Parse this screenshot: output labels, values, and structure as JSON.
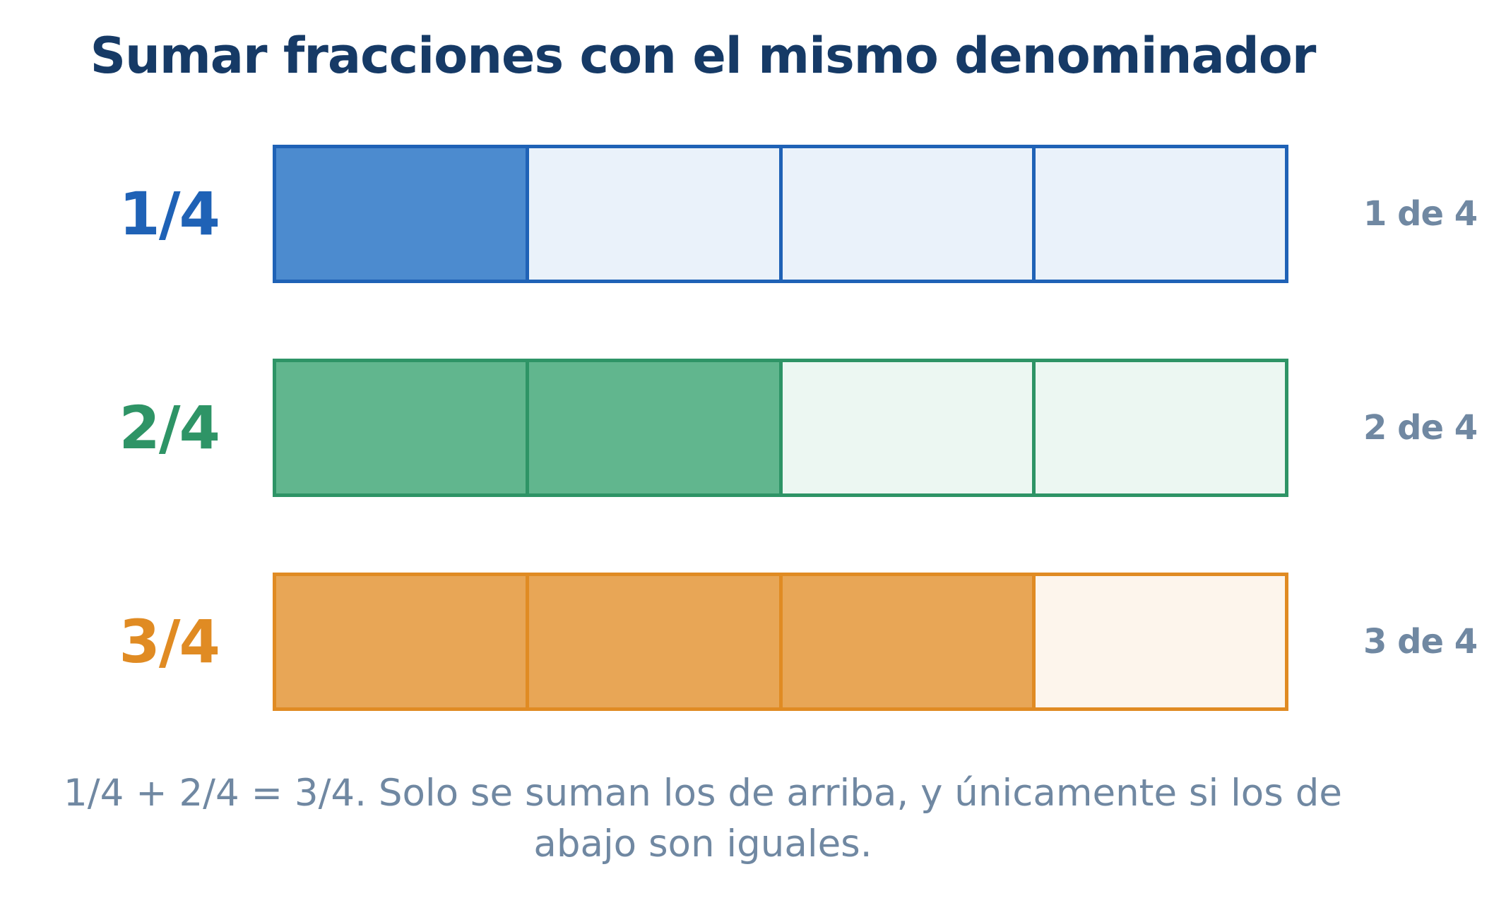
{
  "title": "Sumar fracciones con el mismo denominador",
  "rows": [
    {
      "fraction": "1/4",
      "count_label": "1 de 4",
      "filled": 1,
      "total": 4,
      "colors": {
        "text": "#1f62b6",
        "border": "#1f62b6",
        "filled": "#4c8bcf",
        "empty": "#eaf2fa"
      }
    },
    {
      "fraction": "2/4",
      "count_label": "2 de 4",
      "filled": 2,
      "total": 4,
      "colors": {
        "text": "#2e9466",
        "border": "#2e9466",
        "filled": "#61b68e",
        "empty": "#ecf7f2"
      }
    },
    {
      "fraction": "3/4",
      "count_label": "3 de 4",
      "filled": 3,
      "total": 4,
      "colors": {
        "text": "#e08b23",
        "border": "#e08b23",
        "filled": "#e8a656",
        "empty": "#fdf5ec"
      }
    }
  ],
  "caption_line1": "1/4 + 2/4 = 3/4. Solo se suman los de arriba, y únicamente si los de",
  "caption_line2": "abajo son iguales."
}
